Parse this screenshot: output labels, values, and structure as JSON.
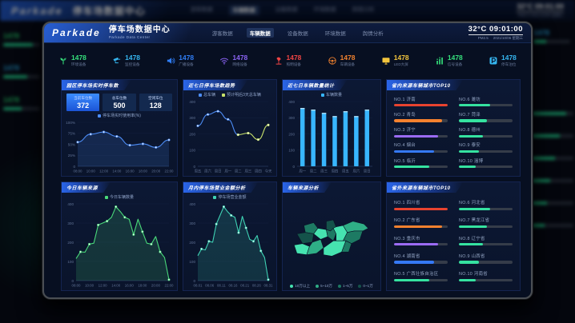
{
  "background": {
    "brand": "Parkade",
    "title": "停车场数据中心",
    "nav": [
      "游客数据",
      "车辆数据",
      "设备数据",
      "环境数据",
      "舆情分析"
    ],
    "active_nav": "车辆数据",
    "temp": "32°C",
    "time": "09:01:00",
    "pm": "PM2.5",
    "date": "2021/10/06 星期三",
    "fragments": [
      "1478",
      "1478",
      "1478",
      "1478"
    ]
  },
  "header": {
    "brand": "Parkade",
    "title": "停车场数据中心",
    "subtitle": "Parkade Data Center",
    "nav": [
      {
        "label": "游客数据",
        "active": false
      },
      {
        "label": "车辆数据",
        "active": true
      },
      {
        "label": "设备数据",
        "active": false
      },
      {
        "label": "环境数据",
        "active": false
      },
      {
        "label": "舆情分析",
        "active": false
      }
    ],
    "temp": "32°C",
    "time": "09:01:00",
    "pm": "PM2.5",
    "date": "2021/10/06 星期三"
  },
  "kpis": [
    {
      "icon": "seedling-icon",
      "value": "1478",
      "label": "环境设备",
      "color": "#35e07c"
    },
    {
      "icon": "camera-icon",
      "value": "1478",
      "label": "监控设备",
      "color": "#35b6f0"
    },
    {
      "icon": "speaker-icon",
      "value": "1478",
      "label": "广播设备",
      "color": "#2f7df6"
    },
    {
      "icon": "wifi-icon",
      "value": "1478",
      "label": "网络设备",
      "color": "#8a63f2"
    },
    {
      "icon": "lamp-icon",
      "value": "1478",
      "label": "照明设备",
      "color": "#ef4444"
    },
    {
      "icon": "steering-wheel-icon",
      "value": "1478",
      "label": "车辆设备",
      "color": "#f0812f"
    },
    {
      "icon": "screen-icon",
      "value": "1478",
      "label": "LED大屏",
      "color": "#f3c53d"
    },
    {
      "icon": "signal-icon",
      "value": "1478",
      "label": "信号设备",
      "color": "#35e07c"
    },
    {
      "icon": "parking-icon",
      "value": "1478",
      "label": "停车泊位",
      "color": "#35b6f0"
    }
  ],
  "panels": {
    "realtime": {
      "title": "园区停车场实时停车数",
      "stats": [
        {
          "label": "当前车位数",
          "value": "372"
        },
        {
          "label": "总车位数",
          "value": "500"
        },
        {
          "label": "空闲车位",
          "value": "128"
        }
      ]
    },
    "weekTrend": {
      "title": "近七日停车场数趋势"
    },
    "weekCount": {
      "title": "近七日车辆数量统计"
    },
    "provinceTop": {
      "title": "省内来源车辆城市TOP10",
      "items": [
        {
          "rank": "NO.1",
          "name": "济南",
          "pct": 100,
          "color": "#e8432f"
        },
        {
          "rank": "NO.2",
          "name": "青岛",
          "pct": 90,
          "color": "#f5812f"
        },
        {
          "rank": "NO.3",
          "name": "济宁",
          "pct": 82,
          "color": "#9b6bf5"
        },
        {
          "rank": "NO.4",
          "name": "烟台",
          "pct": 74,
          "color": "#3579f6"
        },
        {
          "rank": "NO.5",
          "name": "临沂",
          "pct": 66,
          "color": "#35e2a0"
        },
        {
          "rank": "NO.6",
          "name": "潍坊",
          "pct": 58,
          "color": "#35e2a0"
        },
        {
          "rank": "NO.7",
          "name": "菏泽",
          "pct": 52,
          "color": "#35e2a0"
        },
        {
          "rank": "NO.8",
          "name": "德州",
          "pct": 45,
          "color": "#35e2a0"
        },
        {
          "rank": "NO.9",
          "name": "泰安",
          "pct": 38,
          "color": "#35e2a0"
        },
        {
          "rank": "NO.10",
          "name": "淄博",
          "pct": 32,
          "color": "#35e2a0"
        }
      ]
    },
    "todayFlow": {
      "title": "今日车辆来源"
    },
    "monthRevenue": {
      "title": "月内停车场营业金额分析"
    },
    "sourceMap": {
      "title": "车辆来源分析",
      "legend": [
        {
          "label": "10万以上",
          "color": "#46e3b0"
        },
        {
          "label": "5~10万",
          "color": "#2fae86"
        },
        {
          "label": "1~5万",
          "color": "#1d7a63"
        },
        {
          "label": "0~1万",
          "color": "#14524a"
        }
      ]
    },
    "outsideTop": {
      "title": "省外来源车辆城市TOP10",
      "items": [
        {
          "rank": "NO.1",
          "name": "四川省",
          "pct": 100,
          "color": "#e8432f"
        },
        {
          "rank": "NO.2",
          "name": "广东省",
          "pct": 90,
          "color": "#f5812f"
        },
        {
          "rank": "NO.3",
          "name": "重庆市",
          "pct": 82,
          "color": "#9b6bf5"
        },
        {
          "rank": "NO.4",
          "name": "湖南省",
          "pct": 74,
          "color": "#3579f6"
        },
        {
          "rank": "NO.5",
          "name": "广西壮族自治区",
          "pct": 66,
          "color": "#35e2a0"
        },
        {
          "rank": "NO.6",
          "name": "河北省",
          "pct": 58,
          "color": "#35e2a0"
        },
        {
          "rank": "NO.7",
          "name": "黑龙江省",
          "pct": 52,
          "color": "#35e2a0"
        },
        {
          "rank": "NO.8",
          "name": "辽宁省",
          "pct": 45,
          "color": "#35e2a0"
        },
        {
          "rank": "NO.9",
          "name": "山西省",
          "pct": 38,
          "color": "#35e2a0"
        },
        {
          "rank": "NO.10",
          "name": "河南省",
          "pct": 32,
          "color": "#35e2a0"
        }
      ]
    }
  },
  "chart_data": [
    {
      "type": "line",
      "title": "园区停车场实时停车数",
      "categories": [
        "08:00",
        "10:00",
        "12:00",
        "14:00",
        "16:00",
        "18:00",
        "20:00",
        "22:00"
      ],
      "series": [
        {
          "name": "停车场实时使用率(%)",
          "color": "#4d8df7",
          "values": [
            55,
            73,
            78,
            68,
            48,
            51,
            43,
            60
          ],
          "area": true
        }
      ],
      "ylim": [
        0,
        100
      ],
      "yticks": [
        0,
        25,
        50,
        75,
        100
      ],
      "yunit": "%",
      "smooth": true,
      "dots": true,
      "legend_position": "top",
      "grid": false
    },
    {
      "type": "line",
      "title": "近七日停车场数趋势",
      "categories": [
        "周五",
        "周六",
        "周日",
        "周一",
        "周二",
        "周三",
        "周四",
        "今天"
      ],
      "series": [
        {
          "name": "总车辆",
          "color": "#4d8df7",
          "start": 0,
          "values": [
            250,
            320,
            340,
            290,
            195
          ]
        },
        {
          "name": "预计明后3天总车辆",
          "color": "#c9e36a",
          "start": 4,
          "values": [
            195,
            205,
            165,
            255
          ]
        }
      ],
      "ylim": [
        0,
        400
      ],
      "yticks": [
        0,
        100,
        200,
        300,
        400
      ],
      "smooth": true,
      "dots": true,
      "legend_position": "top",
      "grid": false
    },
    {
      "type": "bar",
      "title": "近七日车辆数量统计",
      "legend": [
        "车辆数量"
      ],
      "categories": [
        "周一",
        "周二",
        "周三",
        "周四",
        "周五",
        "周六",
        "周日"
      ],
      "values": [
        360,
        350,
        330,
        310,
        340,
        310,
        350
      ],
      "color": "#38b6ff",
      "ylim": [
        0,
        400
      ],
      "yticks": [
        0,
        100,
        200,
        300,
        400
      ],
      "legend_position": "top",
      "grid": false
    },
    {
      "type": "area",
      "title": "今日车辆来源",
      "categories": [
        "08:00",
        "10:00",
        "12:00",
        "14:00",
        "16:00",
        "18:00",
        "20:00",
        "22:00"
      ],
      "series": [
        {
          "name": "今日车辆数量",
          "color": "#49d97a",
          "values": [
            115,
            150,
            148,
            190,
            195,
            290,
            300,
            310,
            330,
            385,
            360,
            330,
            320,
            240,
            320,
            255,
            195,
            190,
            230,
            150,
            120,
            5
          ]
        }
      ],
      "ylim": [
        0,
        400
      ],
      "yticks": [
        0,
        100,
        200,
        300,
        400
      ],
      "smooth": false,
      "dots": "sparse",
      "legend_position": "top",
      "grid": false
    },
    {
      "type": "area",
      "title": "月内停车场营业金额分析",
      "categories": [
        "08.01",
        "08.06",
        "08.11",
        "08.16",
        "08.21",
        "08.26",
        "08.31"
      ],
      "series": [
        {
          "name": "停车场营业金额",
          "color": "#3fd2b4",
          "values": [
            130,
            165,
            160,
            205,
            200,
            295,
            340,
            385,
            360,
            340,
            330,
            250,
            335,
            275,
            215,
            205,
            235,
            155,
            120,
            5
          ]
        }
      ],
      "ylim": [
        0,
        400
      ],
      "yticks": [
        0,
        100,
        200,
        300,
        400
      ],
      "smooth": false,
      "dots": "sparse",
      "legend_position": "top",
      "grid": false
    }
  ]
}
